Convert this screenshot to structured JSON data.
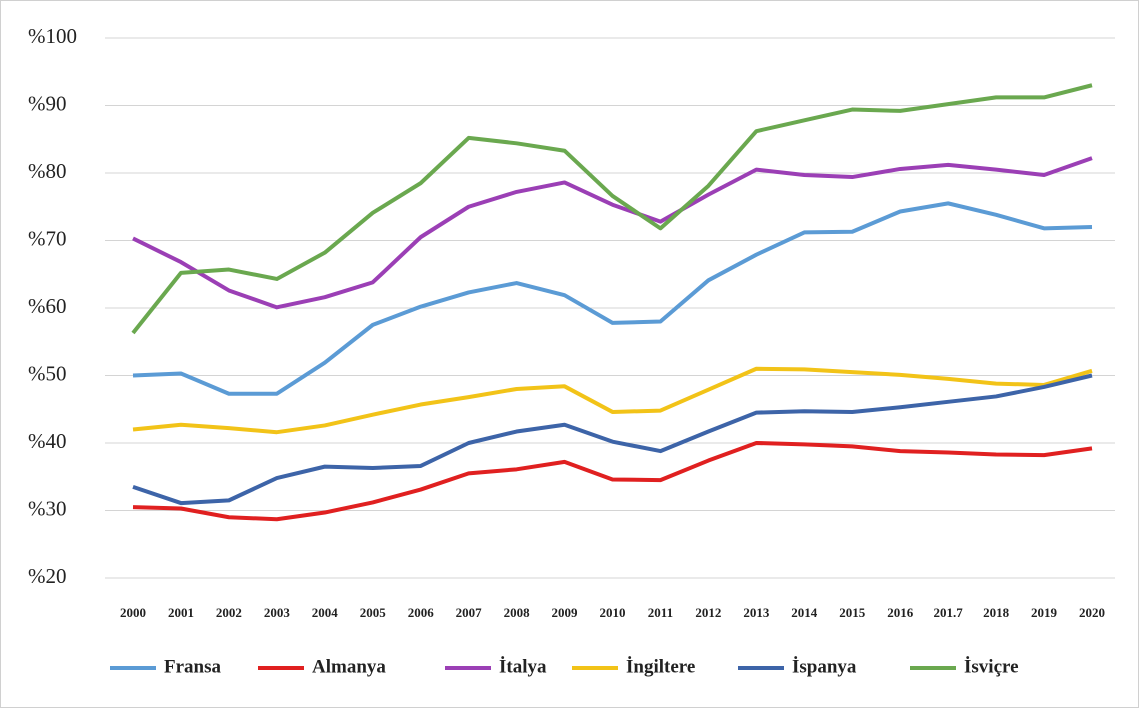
{
  "chart_data": {
    "type": "line",
    "categories": [
      "2000",
      "2001",
      "2002",
      "2003",
      "2004",
      "2005",
      "2006",
      "2007",
      "2008",
      "2009",
      "2010",
      "2011",
      "2012",
      "2013",
      "2014",
      "2015",
      "2016",
      "201.7",
      "2018",
      "2019",
      "2020"
    ],
    "series": [
      {
        "name": "Fransa",
        "color": "#5b9bd5",
        "values": [
          50,
          50.3,
          47.3,
          47.3,
          51.9,
          57.5,
          60.2,
          62.3,
          63.7,
          61.9,
          57.8,
          58,
          64.1,
          67.9,
          71.2,
          71.3,
          74.3,
          75.5,
          73.8,
          71.8,
          72
        ]
      },
      {
        "name": "Almanya",
        "color": "#e02020",
        "values": [
          30.5,
          30.3,
          29,
          28.7,
          29.7,
          31.2,
          33.1,
          35.5,
          36.1,
          37.2,
          34.6,
          34.5,
          37.4,
          40,
          39.8,
          39.5,
          38.8,
          38.6,
          38.3,
          38.2,
          39.2
        ]
      },
      {
        "name": "İtalya",
        "color": "#9b3fb5",
        "values": [
          70.3,
          66.8,
          62.6,
          60.1,
          61.6,
          63.8,
          70.5,
          75,
          77.2,
          78.6,
          75.3,
          72.8,
          76.8,
          80.5,
          79.7,
          79.4,
          80.6,
          81.2,
          80.5,
          79.7,
          82.2
        ]
      },
      {
        "name": "İngiltere",
        "color": "#f2c318",
        "values": [
          42,
          42.7,
          42.2,
          41.6,
          42.6,
          44.2,
          45.7,
          46.8,
          48,
          48.4,
          44.6,
          44.8,
          47.9,
          51,
          50.9,
          50.5,
          50.1,
          49.5,
          48.8,
          48.6,
          50.7
        ]
      },
      {
        "name": "İspanya",
        "color": "#3d64a8",
        "values": [
          33.5,
          31.1,
          31.5,
          34.8,
          36.5,
          36.3,
          36.6,
          40,
          41.7,
          42.7,
          40.2,
          38.8,
          41.7,
          44.5,
          44.7,
          44.6,
          45.3,
          46.1,
          46.9,
          48.3,
          50
        ]
      },
      {
        "name": "İsviçre",
        "color": "#6aa84f",
        "values": [
          56.3,
          65.2,
          65.7,
          64.3,
          68.2,
          74.1,
          78.5,
          85.2,
          84.4,
          83.3,
          76.6,
          71.8,
          78.1,
          86.2,
          87.8,
          89.4,
          89.2,
          90.2,
          91.2,
          91.2,
          93
        ]
      }
    ],
    "ylim": [
      20,
      100
    ],
    "yticks": [
      {
        "value": 20,
        "label": "%20"
      },
      {
        "value": 30,
        "label": "%30"
      },
      {
        "value": 40,
        "label": "%40"
      },
      {
        "value": 50,
        "label": "%50"
      },
      {
        "value": 60,
        "label": "%60"
      },
      {
        "value": 70,
        "label": "%70"
      },
      {
        "value": 80,
        "label": "%80"
      },
      {
        "value": 90,
        "label": "%90"
      },
      {
        "value": 100,
        "label": "%100"
      }
    ],
    "grid": true,
    "legend": "bottom"
  }
}
